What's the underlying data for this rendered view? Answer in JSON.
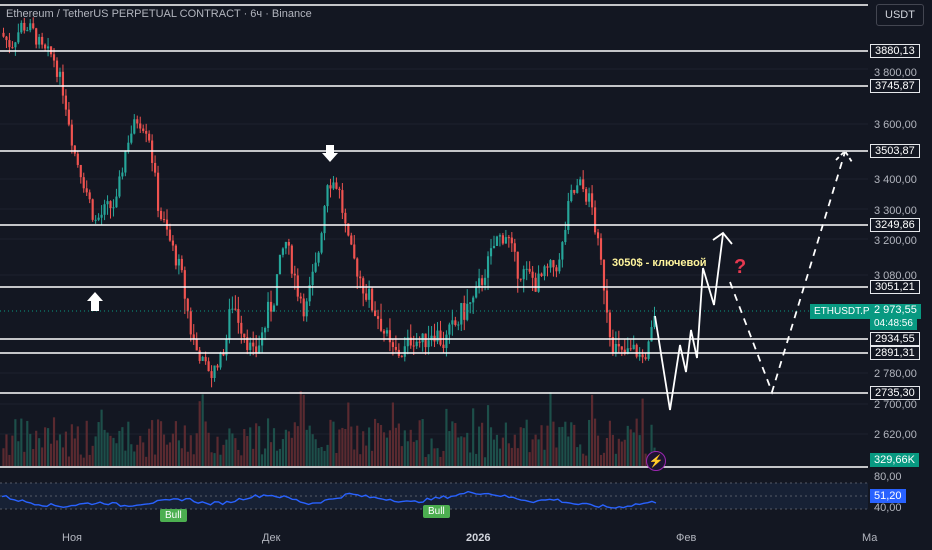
{
  "header": {
    "title": "Ethereum / TetherUS PERPETUAL CONTRACT · 6ч · Binance",
    "currency": "USDT"
  },
  "levels": [
    {
      "label": "3880,13",
      "value": 3880.13
    },
    {
      "label": "3745,87",
      "value": 3745.87
    },
    {
      "label": "3503,87",
      "value": 3503.87
    },
    {
      "label": "3249,86",
      "value": 3249.86
    },
    {
      "label": "3051,21",
      "value": 3051.21
    },
    {
      "label": "2934,55",
      "value": 2934.55
    },
    {
      "label": "2891,31",
      "value": 2891.31
    },
    {
      "label": "2735,30",
      "value": 2735.3
    }
  ],
  "price_axis": [
    "3 800,00",
    "3 600,00",
    "3 400,00",
    "3 300,00",
    "3 200,00",
    "3 080,00",
    "2 780,00",
    "2 700,00",
    "2 620,00"
  ],
  "current_price": {
    "symbol": "ETHUSDT.P",
    "price": "2 973,55",
    "countdown": "04:48:56"
  },
  "volume": {
    "label": "329,66K"
  },
  "rsi": {
    "value": "51,20",
    "upper": "80,00",
    "lower": "40,00",
    "value_num": 51.2
  },
  "annotations": {
    "key_level_note": "3050$ - ключевой",
    "question": "?"
  },
  "bull_labels": [
    "Bull",
    "Bull"
  ],
  "time_axis": {
    "nov": "Ноя",
    "dec": "Дек",
    "year": "2026",
    "feb": "Фев",
    "mar": "Ма"
  },
  "chart_data": {
    "type": "candlestick",
    "symbol": "ETHUSDT.P",
    "timeframe": "6ч",
    "ylim": [
      2560,
      4020
    ],
    "levels": [
      3880.13,
      3745.87,
      3503.87,
      3249.86,
      3051.21,
      2934.55,
      2891.31,
      2735.3
    ],
    "close_path": [
      3950,
      3900,
      3980,
      3960,
      3880,
      3860,
      3720,
      3500,
      3380,
      3260,
      3300,
      3320,
      3540,
      3620,
      3580,
      3300,
      3200,
      3100,
      2960,
      2860,
      2780,
      2880,
      3020,
      2960,
      2880,
      2960,
      3040,
      3200,
      3060,
      3000,
      3120,
      3400,
      3380,
      3180,
      3080,
      3020,
      2980,
      2900,
      2880,
      2940,
      2920,
      2960,
      2920,
      2960,
      3000,
      3020,
      3100,
      3200,
      3220,
      3100,
      3080,
      3060,
      3100,
      3120,
      3340,
      3380,
      3320,
      3100,
      2920,
      2880,
      2900,
      2860,
      2970
    ],
    "rsi_path": [
      60,
      52,
      47,
      44,
      48,
      50,
      45,
      49,
      52,
      56,
      48,
      50,
      58,
      62,
      57,
      48,
      54,
      63,
      58,
      55,
      50,
      55,
      60,
      66,
      63,
      57,
      52,
      55,
      48,
      45,
      42,
      47,
      51
    ]
  }
}
